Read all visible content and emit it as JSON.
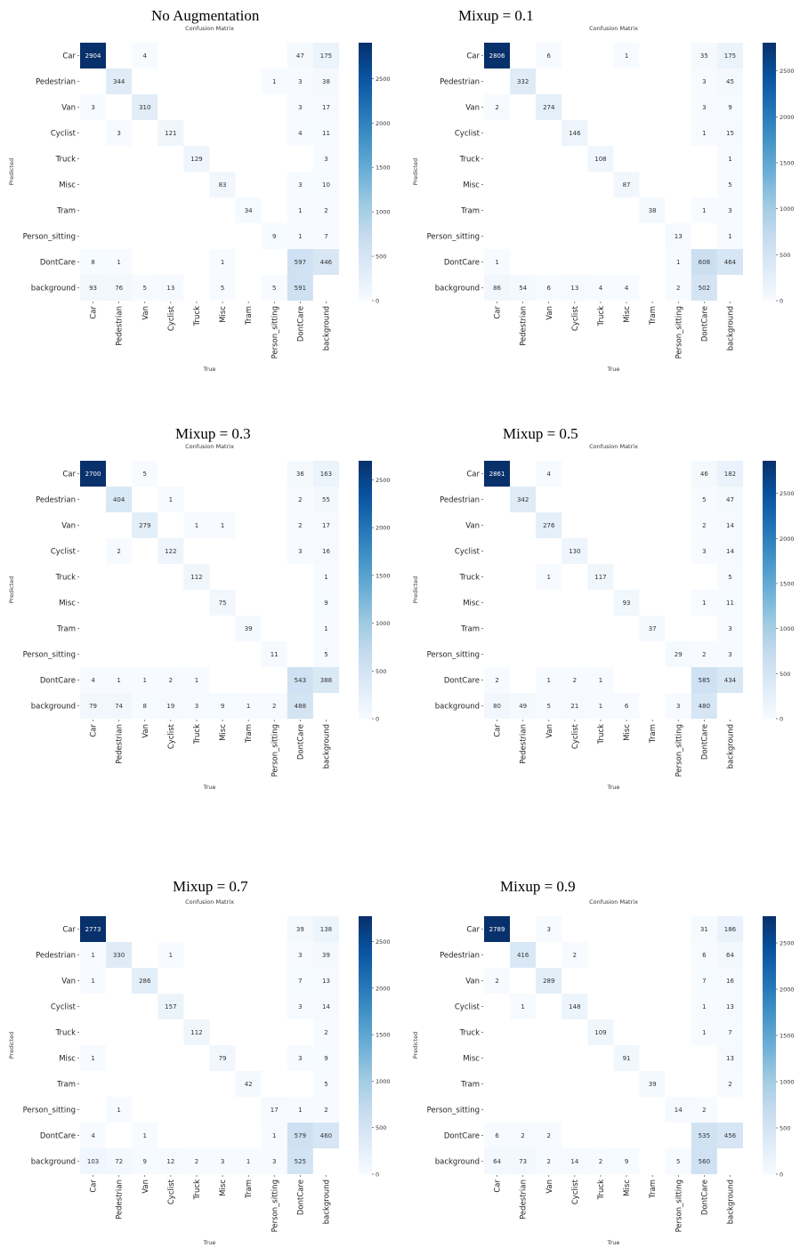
{
  "labels": [
    "Car",
    "Pedestrian",
    "Van",
    "Cyclist",
    "Truck",
    "Misc",
    "Tram",
    "Person_sitting",
    "DontCare",
    "background"
  ],
  "chart_data": [
    {
      "type": "heatmap",
      "title": "No Augmentation",
      "subtitle": "Confusion Matrix",
      "xlabel": "True",
      "ylabel": "Predicted",
      "colorbar_ticks": [
        0,
        500,
        1000,
        1500,
        2000,
        2500
      ],
      "vmax": 2904,
      "matrix": [
        [
          2904,
          null,
          4,
          null,
          null,
          null,
          null,
          null,
          47,
          175
        ],
        [
          null,
          344,
          null,
          null,
          null,
          null,
          null,
          1,
          3,
          38
        ],
        [
          3,
          null,
          310,
          null,
          null,
          null,
          null,
          null,
          3,
          17
        ],
        [
          null,
          3,
          null,
          121,
          null,
          null,
          null,
          null,
          4,
          11
        ],
        [
          null,
          null,
          null,
          null,
          129,
          null,
          null,
          null,
          null,
          3
        ],
        [
          null,
          null,
          null,
          null,
          null,
          83,
          null,
          null,
          3,
          10
        ],
        [
          null,
          null,
          null,
          null,
          null,
          null,
          34,
          null,
          1,
          2
        ],
        [
          null,
          null,
          null,
          null,
          null,
          null,
          null,
          9,
          1,
          7
        ],
        [
          8,
          1,
          null,
          null,
          null,
          1,
          null,
          null,
          597,
          446
        ],
        [
          93,
          76,
          5,
          13,
          null,
          5,
          null,
          5,
          591,
          null
        ]
      ]
    },
    {
      "type": "heatmap",
      "title": "Mixup = 0.1",
      "subtitle": "Confusion Matrix",
      "xlabel": "True",
      "ylabel": "Predicted",
      "colorbar_ticks": [
        0,
        500,
        1000,
        1500,
        2000,
        2500
      ],
      "vmax": 2806,
      "matrix": [
        [
          2806,
          null,
          6,
          null,
          null,
          1,
          null,
          null,
          35,
          175
        ],
        [
          null,
          332,
          null,
          null,
          null,
          null,
          null,
          null,
          3,
          45
        ],
        [
          2,
          null,
          274,
          null,
          null,
          null,
          null,
          null,
          3,
          9
        ],
        [
          null,
          null,
          null,
          146,
          null,
          null,
          null,
          null,
          1,
          15
        ],
        [
          null,
          null,
          null,
          null,
          108,
          null,
          null,
          null,
          null,
          1
        ],
        [
          null,
          null,
          null,
          null,
          null,
          87,
          null,
          null,
          null,
          5
        ],
        [
          null,
          null,
          null,
          null,
          null,
          null,
          38,
          null,
          1,
          3
        ],
        [
          null,
          null,
          null,
          null,
          null,
          null,
          null,
          13,
          null,
          1
        ],
        [
          1,
          null,
          null,
          null,
          null,
          null,
          null,
          1,
          608,
          464
        ],
        [
          86,
          54,
          6,
          13,
          4,
          4,
          null,
          2,
          502,
          null
        ]
      ]
    },
    {
      "type": "heatmap",
      "title": "Mixup = 0.3",
      "subtitle": "Confusion Matrix",
      "xlabel": "True",
      "ylabel": "Predicted",
      "colorbar_ticks": [
        0,
        500,
        1000,
        1500,
        2000,
        2500
      ],
      "vmax": 2700,
      "matrix": [
        [
          2700,
          null,
          5,
          null,
          null,
          null,
          null,
          null,
          36,
          163
        ],
        [
          null,
          404,
          null,
          1,
          null,
          null,
          null,
          null,
          2,
          55
        ],
        [
          null,
          null,
          279,
          null,
          1,
          1,
          null,
          null,
          2,
          17
        ],
        [
          null,
          2,
          null,
          122,
          null,
          null,
          null,
          null,
          3,
          16
        ],
        [
          null,
          null,
          null,
          null,
          112,
          null,
          null,
          null,
          null,
          1
        ],
        [
          null,
          null,
          null,
          null,
          null,
          75,
          null,
          null,
          null,
          9
        ],
        [
          null,
          null,
          null,
          null,
          null,
          null,
          39,
          null,
          null,
          1
        ],
        [
          null,
          null,
          null,
          null,
          null,
          null,
          null,
          11,
          null,
          5
        ],
        [
          4,
          1,
          1,
          2,
          1,
          null,
          null,
          null,
          543,
          388
        ],
        [
          79,
          74,
          8,
          19,
          3,
          9,
          1,
          2,
          488,
          null
        ]
      ]
    },
    {
      "type": "heatmap",
      "title": "Mixup = 0.5",
      "subtitle": "Confusion Matrix",
      "xlabel": "True",
      "ylabel": "Predicted",
      "colorbar_ticks": [
        0,
        500,
        1000,
        1500,
        2000,
        2500
      ],
      "vmax": 2861,
      "matrix": [
        [
          2861,
          null,
          4,
          null,
          null,
          null,
          null,
          null,
          46,
          182
        ],
        [
          null,
          342,
          null,
          null,
          null,
          null,
          null,
          null,
          5,
          47
        ],
        [
          null,
          null,
          276,
          null,
          null,
          null,
          null,
          null,
          2,
          14
        ],
        [
          null,
          null,
          null,
          130,
          null,
          null,
          null,
          null,
          3,
          14
        ],
        [
          null,
          null,
          1,
          null,
          117,
          null,
          null,
          null,
          null,
          5
        ],
        [
          null,
          null,
          null,
          null,
          null,
          93,
          null,
          null,
          1,
          11
        ],
        [
          null,
          null,
          null,
          null,
          null,
          null,
          37,
          null,
          null,
          3
        ],
        [
          null,
          null,
          null,
          null,
          null,
          null,
          null,
          29,
          2,
          3
        ],
        [
          2,
          null,
          1,
          2,
          1,
          null,
          null,
          null,
          585,
          434
        ],
        [
          80,
          49,
          5,
          21,
          1,
          6,
          null,
          3,
          480,
          null
        ]
      ]
    },
    {
      "type": "heatmap",
      "title": "Mixup = 0.7",
      "subtitle": "Confusion Matrix",
      "xlabel": "True",
      "ylabel": "Predicted",
      "colorbar_ticks": [
        0,
        500,
        1000,
        1500,
        2000,
        2500
      ],
      "vmax": 2773,
      "matrix": [
        [
          2773,
          null,
          null,
          null,
          null,
          null,
          null,
          null,
          39,
          138
        ],
        [
          1,
          330,
          null,
          1,
          null,
          null,
          null,
          null,
          3,
          39
        ],
        [
          1,
          null,
          286,
          null,
          null,
          null,
          null,
          null,
          7,
          13
        ],
        [
          null,
          null,
          null,
          157,
          null,
          null,
          null,
          null,
          3,
          14
        ],
        [
          null,
          null,
          null,
          null,
          112,
          null,
          null,
          null,
          null,
          2
        ],
        [
          1,
          null,
          null,
          null,
          null,
          79,
          null,
          null,
          3,
          9
        ],
        [
          null,
          null,
          null,
          null,
          null,
          null,
          42,
          null,
          null,
          5
        ],
        [
          null,
          1,
          null,
          null,
          null,
          null,
          null,
          17,
          1,
          2
        ],
        [
          4,
          null,
          1,
          null,
          null,
          null,
          null,
          1,
          579,
          460
        ],
        [
          103,
          72,
          9,
          12,
          2,
          3,
          1,
          3,
          525,
          null
        ]
      ]
    },
    {
      "type": "heatmap",
      "title": "Mixup = 0.9",
      "subtitle": "Confusion Matrix",
      "xlabel": "True",
      "ylabel": "Predicted",
      "colorbar_ticks": [
        0,
        500,
        1000,
        1500,
        2000,
        2500
      ],
      "vmax": 2789,
      "matrix": [
        [
          2789,
          null,
          3,
          null,
          null,
          null,
          null,
          null,
          31,
          186
        ],
        [
          null,
          416,
          null,
          2,
          null,
          null,
          null,
          null,
          6,
          64
        ],
        [
          2,
          null,
          289,
          null,
          null,
          null,
          null,
          null,
          7,
          16
        ],
        [
          null,
          1,
          null,
          148,
          null,
          null,
          null,
          null,
          1,
          13
        ],
        [
          null,
          null,
          null,
          null,
          109,
          null,
          null,
          null,
          1,
          7
        ],
        [
          null,
          null,
          null,
          null,
          null,
          91,
          null,
          null,
          null,
          13
        ],
        [
          null,
          null,
          null,
          null,
          null,
          null,
          39,
          null,
          null,
          2
        ],
        [
          null,
          null,
          null,
          null,
          null,
          null,
          null,
          14,
          2,
          null
        ],
        [
          6,
          2,
          2,
          null,
          null,
          null,
          null,
          null,
          535,
          456
        ],
        [
          64,
          73,
          2,
          14,
          2,
          9,
          null,
          5,
          560,
          null
        ]
      ]
    }
  ]
}
